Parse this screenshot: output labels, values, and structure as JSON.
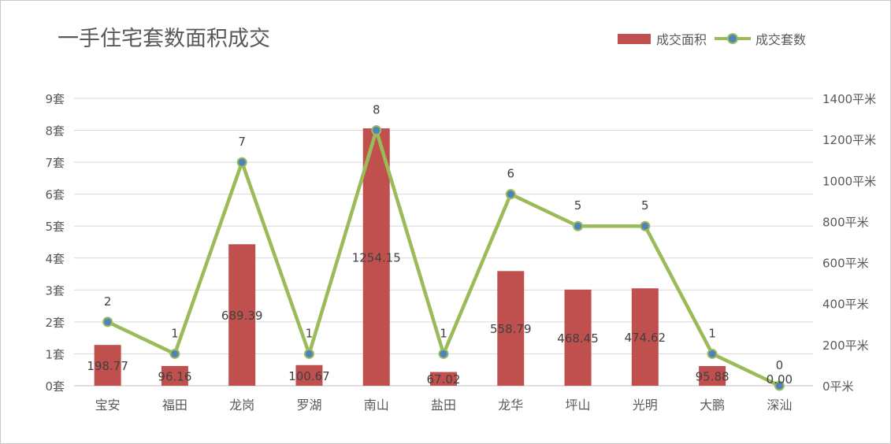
{
  "chart_data": {
    "type": "bar",
    "title": "一手住宅套数面积成交",
    "categories": [
      "宝安",
      "福田",
      "龙岗",
      "罗湖",
      "南山",
      "盐田",
      "龙华",
      "坪山",
      "光明",
      "大鹏",
      "深汕"
    ],
    "series": [
      {
        "name": "成交面积",
        "type": "bar",
        "axis": "right",
        "values": [
          198.77,
          96.16,
          689.39,
          100.67,
          1254.15,
          67.02,
          558.79,
          468.45,
          474.62,
          95.88,
          0.0
        ],
        "labels": [
          "198.77",
          "96.16",
          "689.39",
          "100.67",
          "1254.15",
          "67.02",
          "558.79",
          "468.45",
          "474.62",
          "95.88",
          "0.00"
        ],
        "color": "#c0504d"
      },
      {
        "name": "成交套数",
        "type": "line",
        "axis": "left",
        "values": [
          2,
          1,
          7,
          1,
          8,
          1,
          6,
          5,
          5,
          1,
          0
        ],
        "labels": [
          "2",
          "1",
          "7",
          "1",
          "8",
          "1",
          "6",
          "5",
          "5",
          "1",
          "0"
        ],
        "color": "#9bbb59",
        "marker_color": "#4f81bd"
      }
    ],
    "y_left": {
      "range": [
        0,
        9
      ],
      "ticks": [
        0,
        1,
        2,
        3,
        4,
        5,
        6,
        7,
        8,
        9
      ],
      "tick_labels": [
        "0套",
        "1套",
        "2套",
        "3套",
        "4套",
        "5套",
        "6套",
        "7套",
        "8套",
        "9套"
      ]
    },
    "y_right": {
      "range": [
        0,
        1400
      ],
      "ticks": [
        0,
        200,
        400,
        600,
        800,
        1000,
        1200,
        1400
      ],
      "tick_labels": [
        "0平米",
        "200平米",
        "400平米",
        "600平米",
        "800平米",
        "1000平米",
        "1200平米",
        "1400平米"
      ]
    },
    "grid": true,
    "legend_position": "top-right"
  }
}
